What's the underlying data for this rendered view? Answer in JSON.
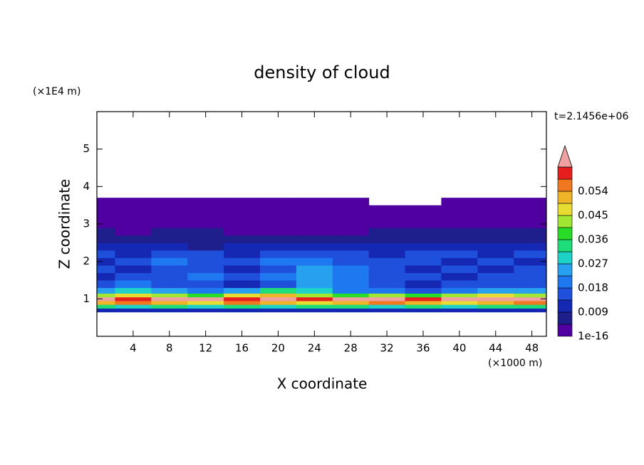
{
  "chart_data": {
    "type": "contour",
    "title": "density of cloud",
    "xlabel": "X coordinate",
    "ylabel": "Z coordinate",
    "x_unit_label": "(×1000 m)",
    "y_unit_label": "(×1E4 m)",
    "time_label": "t=2.1456e+06",
    "xlim": [
      0,
      49.6
    ],
    "ylim": [
      0,
      6
    ],
    "xticks": [
      4,
      8,
      12,
      16,
      20,
      24,
      28,
      32,
      36,
      40,
      44,
      48
    ],
    "yticks": [
      1,
      2,
      3,
      4,
      5
    ],
    "x": [
      0,
      4,
      8,
      12,
      16,
      20,
      24,
      28,
      32,
      36,
      40,
      44,
      48
    ],
    "y": [
      0.7,
      0.8,
      0.9,
      1.0,
      1.1,
      1.2,
      1.4,
      1.6,
      1.8,
      2.0,
      2.2,
      2.4,
      2.6,
      2.8,
      3.0,
      3.2,
      3.4,
      3.6
    ],
    "values": [
      [
        0.011,
        0.011,
        0.011,
        0.011,
        0.011,
        0.011,
        0.011,
        0.011,
        0.011,
        0.011,
        0.011,
        0.011,
        0.011
      ],
      [
        0.034,
        0.03,
        0.034,
        0.03,
        0.034,
        0.03,
        0.034,
        0.034,
        0.03,
        0.034,
        0.03,
        0.034,
        0.034
      ],
      [
        0.052,
        0.056,
        0.052,
        0.047,
        0.056,
        0.052,
        0.047,
        0.052,
        0.056,
        0.052,
        0.047,
        0.052,
        0.056
      ],
      [
        0.065,
        0.059,
        0.065,
        0.065,
        0.059,
        0.065,
        0.059,
        0.065,
        0.065,
        0.059,
        0.065,
        0.065,
        0.065
      ],
      [
        0.043,
        0.047,
        0.043,
        0.038,
        0.047,
        0.052,
        0.043,
        0.038,
        0.043,
        0.038,
        0.043,
        0.047,
        0.043
      ],
      [
        0.025,
        0.03,
        0.025,
        0.02,
        0.025,
        0.034,
        0.03,
        0.02,
        0.02,
        0.016,
        0.02,
        0.025,
        0.025
      ],
      [
        0.016,
        0.02,
        0.016,
        0.016,
        0.011,
        0.016,
        0.025,
        0.02,
        0.016,
        0.011,
        0.016,
        0.016,
        0.016
      ],
      [
        0.011,
        0.016,
        0.016,
        0.02,
        0.016,
        0.02,
        0.025,
        0.02,
        0.016,
        0.016,
        0.011,
        0.016,
        0.016
      ],
      [
        0.016,
        0.011,
        0.016,
        0.016,
        0.011,
        0.016,
        0.025,
        0.02,
        0.016,
        0.011,
        0.016,
        0.011,
        0.016
      ],
      [
        0.011,
        0.016,
        0.02,
        0.016,
        0.016,
        0.02,
        0.02,
        0.016,
        0.016,
        0.016,
        0.011,
        0.016,
        0.011
      ],
      [
        0.016,
        0.011,
        0.016,
        0.016,
        0.011,
        0.016,
        0.016,
        0.016,
        0.011,
        0.016,
        0.016,
        0.011,
        0.016
      ],
      [
        0.011,
        0.011,
        0.011,
        0.007,
        0.011,
        0.011,
        0.011,
        0.011,
        0.011,
        0.011,
        0.011,
        0.011,
        0.011
      ],
      [
        0.007,
        0.007,
        0.007,
        0.007,
        0.007,
        0.007,
        0.007,
        0.007,
        0.007,
        0.007,
        0.007,
        0.007,
        0.007
      ],
      [
        0.007,
        0.002,
        0.007,
        0.007,
        0.002,
        0.002,
        0.002,
        0.002,
        0.007,
        0.007,
        0.007,
        0.007,
        0.007
      ],
      [
        0.002,
        0.002,
        0.002,
        0.002,
        0.002,
        0.002,
        0.002,
        0.002,
        0.002,
        0.002,
        0.002,
        0.002,
        0.002
      ],
      [
        0.002,
        0.002,
        0.002,
        0.002,
        0.002,
        0.002,
        0.002,
        0.002,
        0.002,
        0.002,
        0.002,
        0.002,
        0.002
      ],
      [
        0.002,
        0.002,
        0.002,
        0.002,
        0.002,
        0.002,
        0.002,
        0.002,
        0.002,
        0.002,
        0.002,
        0.002,
        0.002
      ],
      [
        0.002,
        0.002,
        0.002,
        0.002,
        0.002,
        0.002,
        0.002,
        0.002,
        null,
        null,
        0.002,
        0.002,
        0.002
      ]
    ],
    "levels": [
      1e-16,
      0.0045,
      0.009,
      0.0135,
      0.018,
      0.0225,
      0.027,
      0.0315,
      0.036,
      0.0405,
      0.045,
      0.0495,
      0.054,
      0.0585,
      0.063
    ],
    "colors": [
      "#5000a0",
      "#1e1e8c",
      "#1428b4",
      "#1e50dc",
      "#1e78f0",
      "#28a0f0",
      "#1ed2c8",
      "#1edc78",
      "#28dc28",
      "#a0e632",
      "#e6dc32",
      "#f0b428",
      "#f07820",
      "#e61e1e"
    ],
    "over_color": "#f0a0a0",
    "colorbar_ticks": [
      {
        "value": 1e-16,
        "label": "1e-16"
      },
      0.009,
      0.018,
      0.027,
      0.036,
      0.045,
      0.054
    ]
  }
}
